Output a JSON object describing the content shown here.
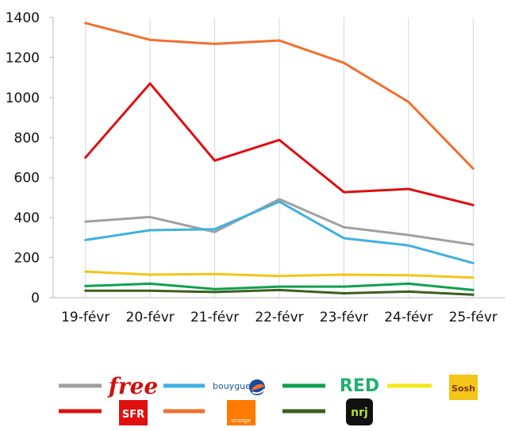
{
  "chart_data": {
    "type": "line",
    "categories": [
      "19-févr",
      "20-févr",
      "21-févr",
      "22-févr",
      "23-févr",
      "24-févr",
      "25-févr"
    ],
    "ylim": [
      0,
      1400
    ],
    "yticks": [
      0,
      200,
      400,
      600,
      800,
      1000,
      1200,
      1400
    ],
    "grid": "vertical",
    "legend": "bottom",
    "series": [
      {
        "name": "Free",
        "color": "#A0A0A0",
        "values": [
          380,
          403,
          328,
          492,
          352,
          313,
          265
        ]
      },
      {
        "name": "SFR",
        "color": "#DD1010",
        "values": [
          700,
          1070,
          685,
          788,
          527,
          543,
          463
        ]
      },
      {
        "name": "Bouygues",
        "color": "#40B0E0",
        "values": [
          288,
          337,
          342,
          480,
          297,
          261,
          173
        ]
      },
      {
        "name": "Orange",
        "color": "#F07030",
        "values": [
          1372,
          1288,
          1268,
          1285,
          1173,
          978,
          645
        ]
      },
      {
        "name": "RED",
        "color": "#10A050",
        "values": [
          58,
          70,
          43,
          55,
          55,
          70,
          38
        ]
      },
      {
        "name": "NRJ",
        "color": "#3A6020",
        "values": [
          35,
          35,
          28,
          38,
          22,
          30,
          15
        ]
      },
      {
        "name": "Sosh",
        "color": "#F5C518",
        "values": [
          130,
          115,
          118,
          108,
          115,
          112,
          100
        ]
      }
    ]
  },
  "legend": {
    "free_logo": "free",
    "sfr_logo": "SFR",
    "bouygues_logo": "bouygues",
    "orange_logo": "orange",
    "red_logo": "RED",
    "sosh_logo": "Sosh",
    "nrj_logo": "nrj"
  }
}
